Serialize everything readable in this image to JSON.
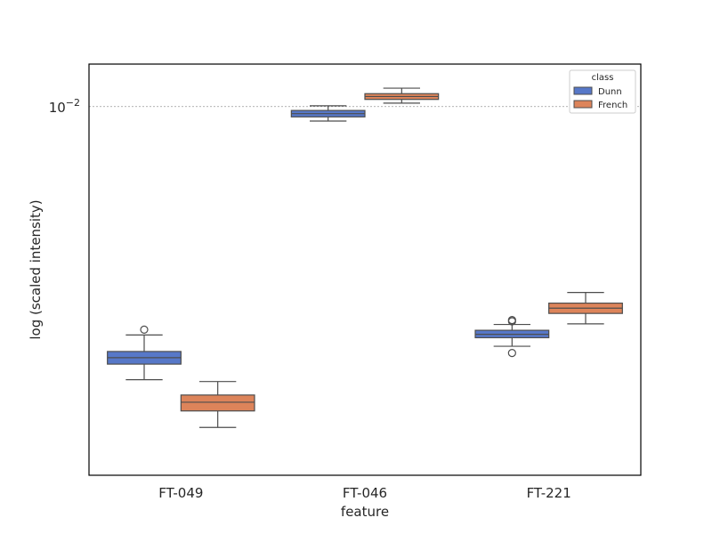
{
  "chart_data": {
    "type": "boxplot",
    "xlabel": "feature",
    "ylabel": "log (scaled intensity)",
    "y_scale": "log",
    "y_ticks": [
      0.01
    ],
    "y_tick_labels": [
      {
        "base": "10",
        "exp": "−2"
      }
    ],
    "ylim": [
      0.0009,
      0.0132
    ],
    "grid": false,
    "reference_line": {
      "y": 0.01,
      "style": "dotted",
      "color": "#999999"
    },
    "categories": [
      "FT-049",
      "FT-046",
      "FT-221"
    ],
    "legend": {
      "title": "class",
      "location": "top-right"
    },
    "series": [
      {
        "name": "Dunn",
        "color": "#5778c8",
        "boxes": [
          {
            "whislo": 0.00168,
            "q1": 0.00186,
            "med": 0.00194,
            "q3": 0.00202,
            "whishi": 0.00225,
            "fliers": [
              0.00233
            ]
          },
          {
            "whislo": 0.0091,
            "q1": 0.00935,
            "med": 0.00955,
            "q3": 0.00975,
            "whishi": 0.01005,
            "fliers": []
          },
          {
            "whislo": 0.00209,
            "q1": 0.00221,
            "med": 0.00226,
            "q3": 0.00232,
            "whishi": 0.00241,
            "fliers": [
              0.00246,
              0.00248,
              0.002
            ]
          }
        ]
      },
      {
        "name": "French",
        "color": "#dd845a",
        "boxes": [
          {
            "whislo": 0.00123,
            "q1": 0.00137,
            "med": 0.00145,
            "q3": 0.00152,
            "whishi": 0.00166,
            "fliers": []
          },
          {
            "whislo": 0.01023,
            "q1": 0.01048,
            "med": 0.01068,
            "q3": 0.01088,
            "whishi": 0.01128,
            "fliers": []
          },
          {
            "whislo": 0.00242,
            "q1": 0.00259,
            "med": 0.00268,
            "q3": 0.00277,
            "whishi": 0.00297,
            "fliers": []
          }
        ]
      }
    ]
  }
}
